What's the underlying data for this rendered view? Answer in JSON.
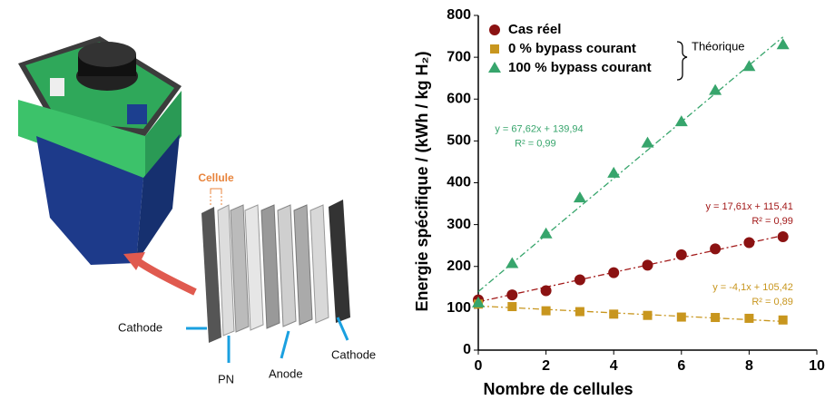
{
  "chart_data": {
    "type": "scatter",
    "x_label": "Nombre de cellules",
    "y_label": "Energie spécifique / (kWh / kg H₂)",
    "x": [
      0,
      1,
      2,
      3,
      4,
      5,
      6,
      7,
      8,
      9
    ],
    "series": [
      {
        "name": "Cas réel",
        "color": "#8b1212",
        "marker": "circle",
        "values": [
          120,
          132,
          142,
          168,
          185,
          203,
          228,
          242,
          257,
          271
        ],
        "fit": {
          "slope": 17.61,
          "intercept": 115.41,
          "equation": "y = 17,61x + 115,41",
          "r2": "R² = 0,99",
          "color": "#a31a1a"
        }
      },
      {
        "name": "0 % bypass courant",
        "color": "#c8961e",
        "marker": "square",
        "values": [
          110,
          104,
          94,
          92,
          86,
          83,
          79,
          78,
          76,
          72
        ],
        "fit": {
          "slope": -4.1,
          "intercept": 105.42,
          "equation": "y = -4,1x + 105,42",
          "r2": "R² = 0,89",
          "color": "#c8961e"
        }
      },
      {
        "name": "100 % bypass courant",
        "color": "#37a56c",
        "marker": "triangle",
        "values": [
          113,
          207,
          278,
          364,
          423,
          495,
          546,
          621,
          678,
          730
        ],
        "fit": {
          "slope": 67.62,
          "intercept": 139.94,
          "equation": "y = 67,62x + 139,94",
          "r2": "R² = 0,99",
          "color": "#37a56c"
        }
      }
    ],
    "legend_note": "Théorique",
    "xlim": [
      0,
      10
    ],
    "xticks": [
      0,
      2,
      4,
      6,
      8,
      10
    ],
    "ylim": [
      0,
      800
    ],
    "yticks": [
      0,
      100,
      200,
      300,
      400,
      500,
      600,
      700,
      800
    ],
    "legend": "top-left"
  },
  "figure_labels": {
    "cell": "Cellule",
    "cathode_left": "Cathode",
    "pn": "PN",
    "anode": "Anode",
    "cathode_right": "Cathode"
  }
}
